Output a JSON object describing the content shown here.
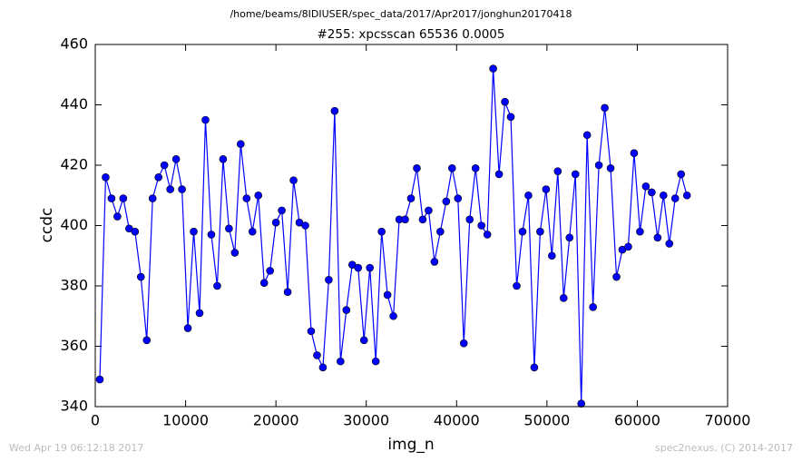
{
  "chart_data": {
    "type": "line",
    "suptitle": "/home/beams/8IDIUSER/spec_data/2017/Apr2017/jonghun20170418",
    "title": "#255: xpcsscan 65536 0.0005",
    "x_label": "img_n",
    "y_label": "ccdc",
    "footer_left": "Wed Apr 19 06:12:18 2017",
    "footer_right": "spec2nexus, (C) 2014-2017",
    "color": "#0000ff",
    "x": [
      500,
      1150,
      1800,
      2450,
      3100,
      3750,
      4400,
      5050,
      5700,
      6350,
      7000,
      7650,
      8300,
      8950,
      9600,
      10250,
      10900,
      11550,
      12200,
      12850,
      13500,
      14150,
      14800,
      15450,
      16100,
      16750,
      17400,
      18050,
      18700,
      19350,
      20000,
      20650,
      21300,
      21950,
      22600,
      23250,
      23900,
      24550,
      25200,
      25850,
      26500,
      27150,
      27800,
      28450,
      29100,
      29750,
      30400,
      31050,
      31700,
      32350,
      33000,
      33650,
      34300,
      34950,
      35600,
      36250,
      36900,
      37550,
      38200,
      38850,
      39500,
      40150,
      40800,
      41450,
      42100,
      42750,
      43400,
      44050,
      44700,
      45350,
      46000,
      46650,
      47300,
      47950,
      48600,
      49250,
      49900,
      50550,
      51200,
      51850,
      52500,
      53150,
      53800,
      54450,
      55100,
      55750,
      56400,
      57050,
      57700,
      58350,
      59000,
      59650,
      60300,
      60950,
      61600,
      62250,
      62900,
      63550,
      64200,
      64850,
      65500
    ],
    "values": [
      349,
      416,
      409,
      403,
      409,
      399,
      398,
      383,
      362,
      409,
      416,
      420,
      412,
      422,
      412,
      366,
      398,
      371,
      435,
      397,
      380,
      422,
      399,
      391,
      427,
      409,
      398,
      410,
      381,
      385,
      401,
      405,
      378,
      415,
      401,
      400,
      365,
      357,
      353,
      382,
      438,
      355,
      372,
      387,
      386,
      362,
      386,
      355,
      398,
      377,
      370,
      402,
      402,
      409,
      419,
      402,
      405,
      388,
      398,
      408,
      419,
      409,
      361,
      402,
      419,
      400,
      397,
      452,
      417,
      441,
      436,
      380,
      398,
      410,
      353,
      398,
      412,
      390,
      418,
      376,
      396,
      417,
      341,
      430,
      373,
      420,
      439,
      419,
      383,
      392,
      393,
      424,
      398,
      413,
      411,
      396,
      410,
      394,
      409,
      417,
      410
    ],
    "xlim": [
      0,
      70000
    ],
    "xticks": [
      0,
      10000,
      20000,
      30000,
      40000,
      50000,
      60000,
      70000
    ],
    "ylim": [
      340,
      460
    ],
    "yticks": [
      340,
      360,
      380,
      400,
      420,
      440,
      460
    ],
    "grid": false
  }
}
